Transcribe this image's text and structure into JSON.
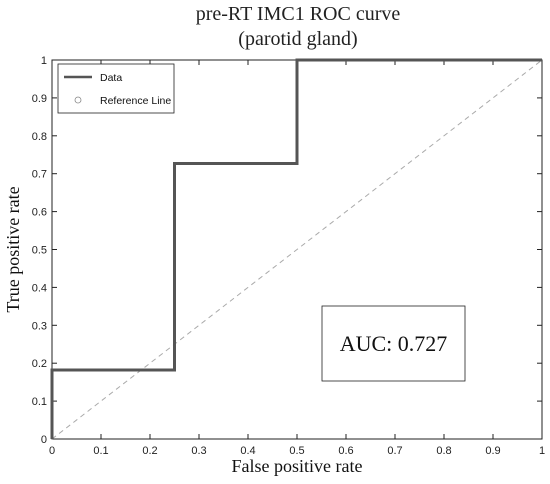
{
  "chart_data": {
    "type": "line",
    "title": [
      "pre-RT IMC1 ROC curve",
      "(parotid gland)"
    ],
    "xlabel": "False positive rate",
    "ylabel": "True positive rate",
    "xlim": [
      0,
      1
    ],
    "ylim": [
      0,
      1
    ],
    "xticks": [
      "0",
      "0.1",
      "0.2",
      "0.3",
      "0.4",
      "0.5",
      "0.6",
      "0.7",
      "0.8",
      "0.9",
      "1"
    ],
    "yticks": [
      "0",
      "0.1",
      "0.2",
      "0.3",
      "0.4",
      "0.5",
      "0.6",
      "0.7",
      "0.8",
      "0.9",
      "1"
    ],
    "grid": false,
    "legend_position": "top-left",
    "series": [
      {
        "name": "Data",
        "style": "step",
        "color": "#555555",
        "x": [
          0,
          0,
          0.25,
          0.25,
          0.5,
          0.5,
          1
        ],
        "y": [
          0,
          0.182,
          0.182,
          0.727,
          0.727,
          1,
          1
        ]
      },
      {
        "name": "Reference Line",
        "style": "dashed",
        "color": "#aaaaaa",
        "x": [
          0,
          1
        ],
        "y": [
          0,
          1
        ]
      }
    ],
    "annotation": "AUC: 0.727"
  }
}
